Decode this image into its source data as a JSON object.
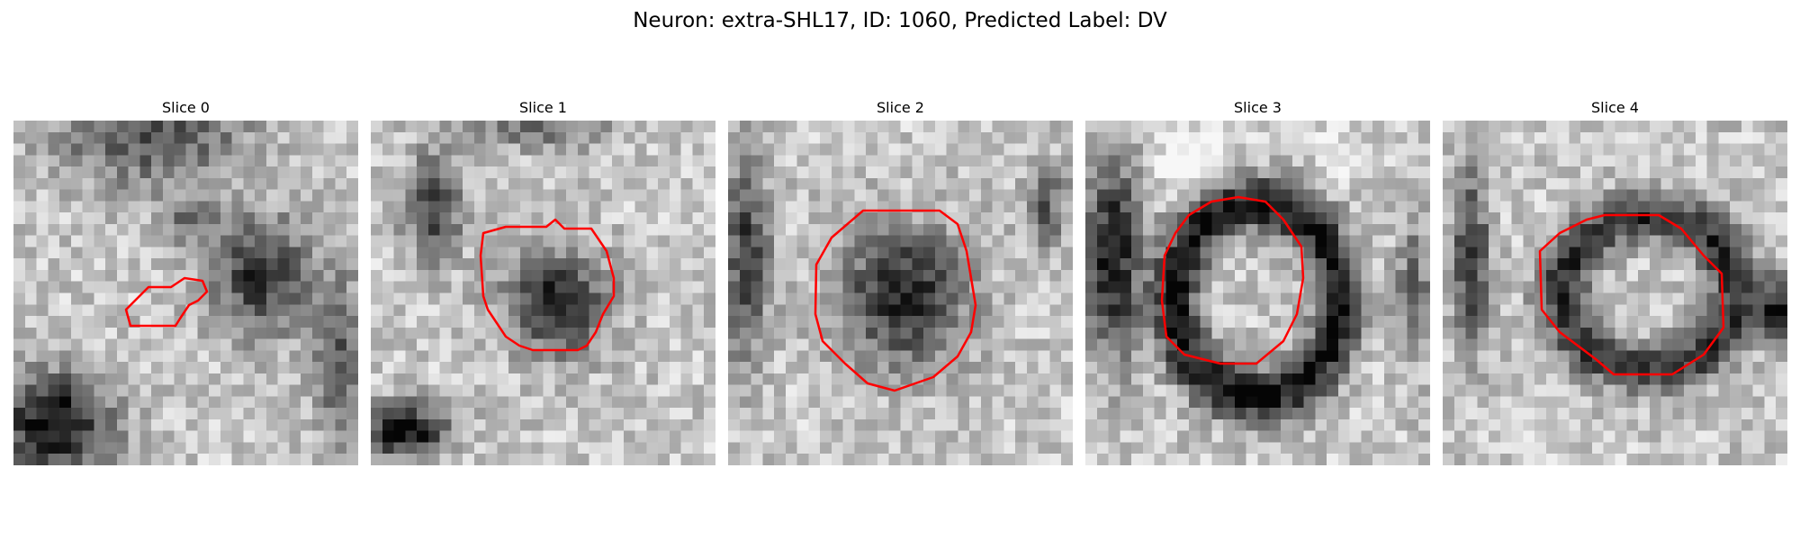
{
  "figure": {
    "title": "Neuron: extra-SHL17, ID: 1060, Predicted Label: DV"
  },
  "panels": [
    {
      "title": "Slice 0"
    },
    {
      "title": "Slice 1"
    },
    {
      "title": "Slice 2"
    },
    {
      "title": "Slice 3"
    },
    {
      "title": "Slice 4"
    }
  ],
  "colors": {
    "contour": "#ff0000",
    "background": "#ffffff",
    "colormap": "gray"
  }
}
